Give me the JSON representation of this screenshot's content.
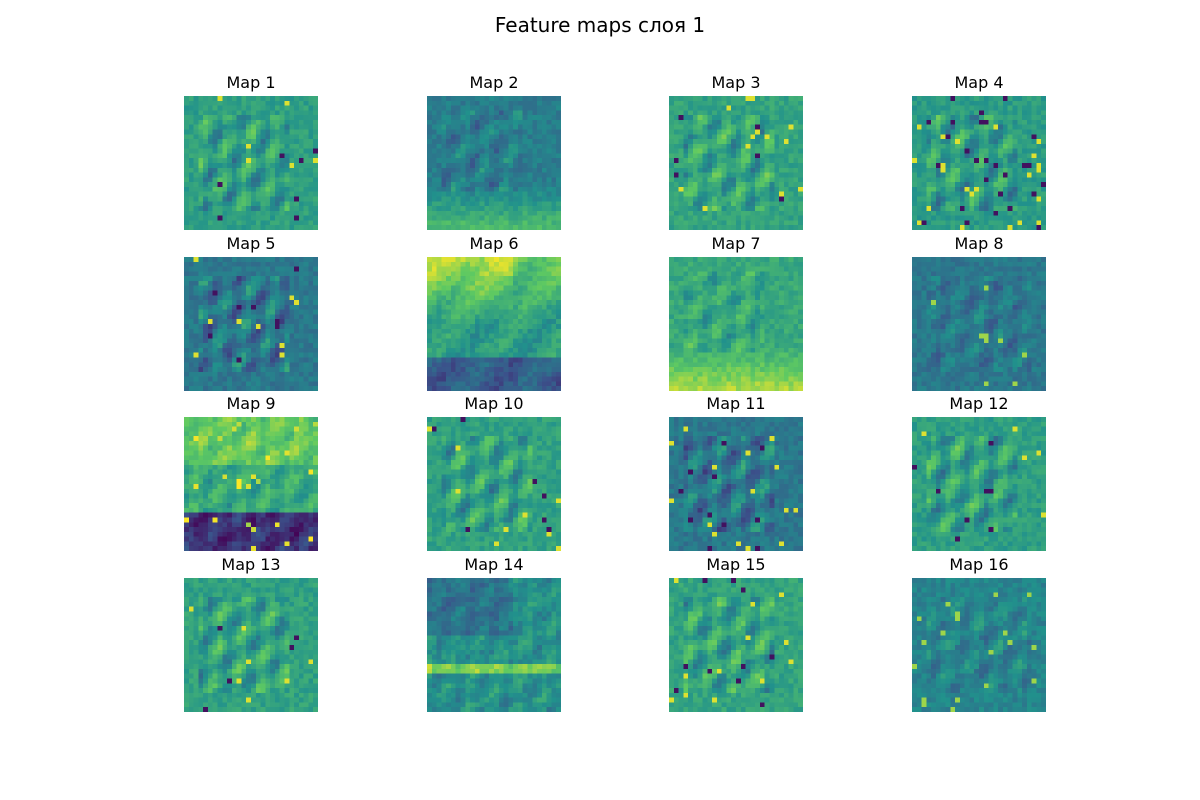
{
  "figure": {
    "title": "Feature maps слоя 1"
  },
  "panels": [
    {
      "title": "Map 1"
    },
    {
      "title": "Map 2"
    },
    {
      "title": "Map 3"
    },
    {
      "title": "Map 4"
    },
    {
      "title": "Map 5"
    },
    {
      "title": "Map 6"
    },
    {
      "title": "Map 7"
    },
    {
      "title": "Map 8"
    },
    {
      "title": "Map 9"
    },
    {
      "title": "Map 10"
    },
    {
      "title": "Map 11"
    },
    {
      "title": "Map 12"
    },
    {
      "title": "Map 13"
    },
    {
      "title": "Map 14"
    },
    {
      "title": "Map 15"
    },
    {
      "title": "Map 16"
    }
  ],
  "colormap": {
    "name": "viridis",
    "stops": [
      "#440154",
      "#3b528b",
      "#21918c",
      "#5ec962",
      "#fde725"
    ]
  }
}
